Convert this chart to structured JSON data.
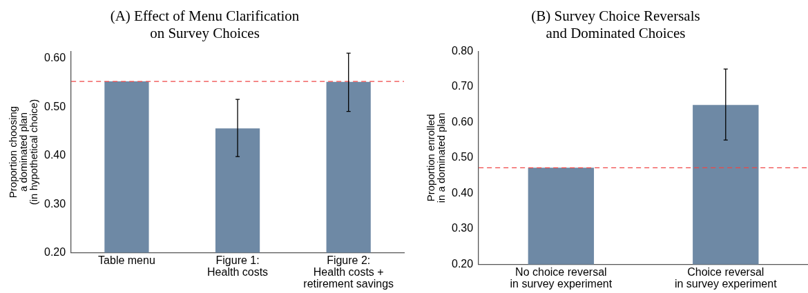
{
  "chart_data": [
    {
      "type": "bar",
      "title": "(A) Effect of Menu Clarification\non Survey Choices",
      "ylabel": "Proportion choosing\na dominated plan\n(in hypothetical choice)",
      "categories": [
        "Table menu",
        "Figure 1:\nHealth costs",
        "Figure 2:\nHealth costs +\nretirement savings"
      ],
      "values": [
        0.553,
        0.456,
        0.552
      ],
      "color": "#6e89a5",
      "errors": [
        null,
        [
          0.398,
          0.516
        ],
        [
          0.491,
          0.611
        ]
      ],
      "ylim": [
        0.2,
        0.615
      ],
      "yticks": [
        {
          "value": 0.2,
          "label": "0.20"
        },
        {
          "value": 0.3,
          "label": "0.30"
        },
        {
          "value": 0.4,
          "label": "0.40"
        },
        {
          "value": 0.5,
          "label": "0.50"
        },
        {
          "value": 0.6,
          "label": "0.60"
        }
      ],
      "ref_lines": [
        {
          "axis": "y",
          "value": 0.553,
          "color": "#f04545",
          "line_style": "dashed"
        }
      ],
      "grid": false,
      "legend": false
    },
    {
      "type": "bar",
      "title": "(B) Survey Choice Reversals\nand Dominated Choices",
      "ylabel": "Proportion enrolled\nin a dominated plan",
      "categories": [
        "No choice reversal\nin survey experiment",
        "Choice reversal\nin survey experiment"
      ],
      "values": [
        0.472,
        0.649
      ],
      "color": "#6e89a5",
      "errors": [
        null,
        [
          0.55,
          0.75
        ]
      ],
      "ylim": [
        0.2,
        0.8
      ],
      "yticks": [
        {
          "value": 0.2,
          "label": "0.20"
        },
        {
          "value": 0.3,
          "label": "0.30"
        },
        {
          "value": 0.4,
          "label": "0.40"
        },
        {
          "value": 0.5,
          "label": "0.50"
        },
        {
          "value": 0.6,
          "label": "0.60"
        },
        {
          "value": 0.7,
          "label": "0.70"
        },
        {
          "value": 0.8,
          "label": "0.80"
        }
      ],
      "ref_lines": [
        {
          "axis": "y",
          "value": 0.472,
          "color": "#f04545",
          "line_style": "dashed"
        }
      ],
      "grid": false,
      "legend": false
    }
  ]
}
